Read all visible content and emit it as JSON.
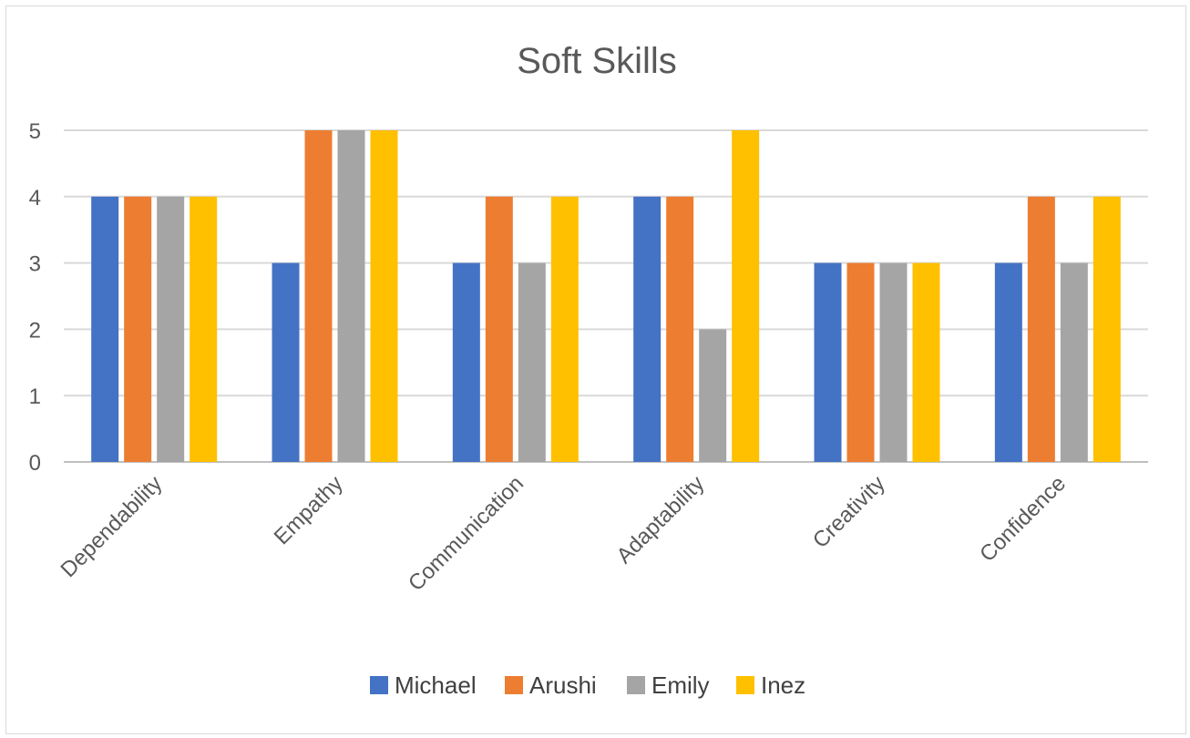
{
  "chart_data": {
    "type": "bar",
    "title": "Soft Skills",
    "xlabel": "",
    "ylabel": "",
    "ylim": [
      0,
      5
    ],
    "yticks": [
      0,
      1,
      2,
      3,
      4,
      5
    ],
    "grid": true,
    "legend_position": "bottom",
    "categories": [
      "Dependability",
      "Empathy",
      "Communication",
      "Adaptability",
      "Creativity",
      "Confidence"
    ],
    "series": [
      {
        "name": "Michael",
        "color": "#4472C4",
        "values": [
          4,
          3,
          3,
          4,
          3,
          3
        ]
      },
      {
        "name": "Arushi",
        "color": "#ED7D31",
        "values": [
          4,
          5,
          4,
          4,
          3,
          4
        ]
      },
      {
        "name": "Emily",
        "color": "#A5A5A5",
        "values": [
          4,
          5,
          3,
          2,
          3,
          3
        ]
      },
      {
        "name": "Inez",
        "color": "#FFC000",
        "values": [
          4,
          5,
          4,
          5,
          3,
          4
        ]
      }
    ]
  }
}
